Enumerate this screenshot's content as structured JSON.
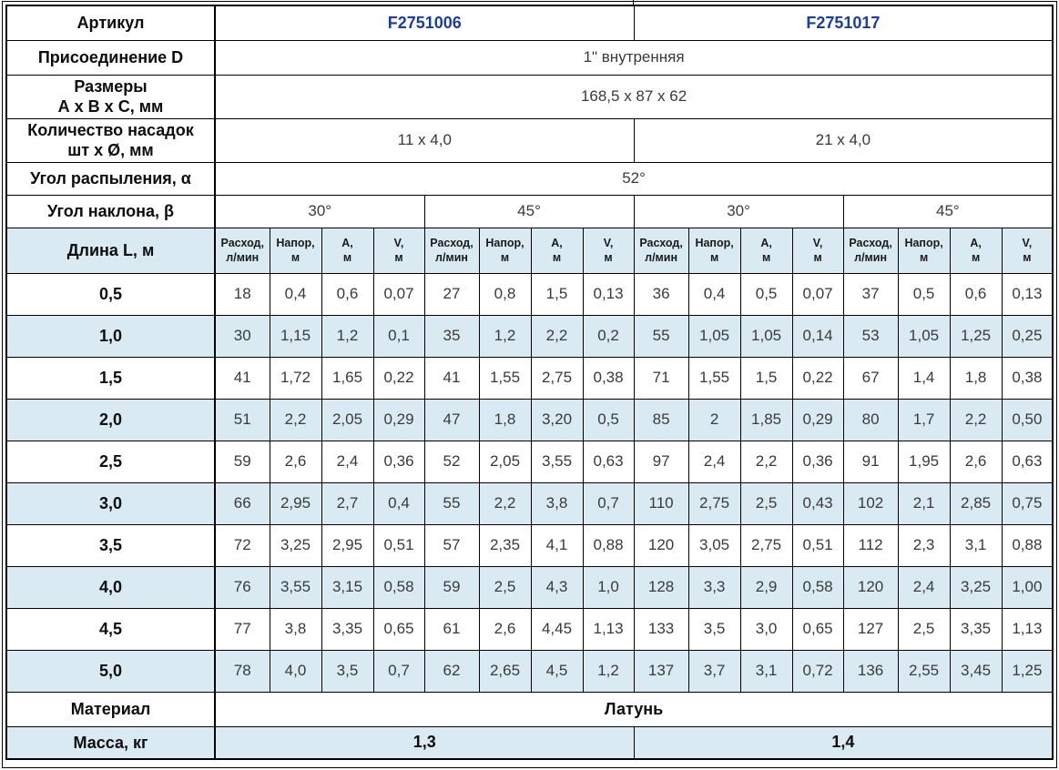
{
  "colors": {
    "accent_blue": "#d9eaf2",
    "article_blue": "#1b3da6",
    "border": "#000000"
  },
  "table": {
    "article": {
      "label": "Артикул",
      "left": "F2751006",
      "right": "F2751017"
    },
    "connection": {
      "label": "Присоединение D",
      "value": "1\" внутренняя"
    },
    "dimensions": {
      "label_line1": "Размеры",
      "label_line2": "А х В х С, мм",
      "value": "168,5 x 87 x 62"
    },
    "nozzles": {
      "label_line1": "Количество насадок",
      "label_line2": "шт х Ø, мм",
      "left": "11 x 4,0",
      "right": "21 x 4,0"
    },
    "spray_angle": {
      "label": "Угол распыления, α",
      "value": "52°"
    },
    "tilt_angle": {
      "label": "Угол наклона, β",
      "groups": [
        "30°",
        "45°",
        "30°",
        "45°"
      ]
    },
    "length_header": {
      "label": "Длина L, м",
      "group_count": 4,
      "sub_columns": [
        {
          "line1": "Расход,",
          "line2": "л/мин"
        },
        {
          "line1": "Напор,",
          "line2": "м"
        },
        {
          "line1": "А,",
          "line2": "м"
        },
        {
          "line1": "V,",
          "line2": "м"
        }
      ]
    },
    "rows": [
      {
        "length": "0,5",
        "values": [
          "18",
          "0,4",
          "0,6",
          "0,07",
          "27",
          "0,8",
          "1,5",
          "0,13",
          "36",
          "0,4",
          "0,5",
          "0,07",
          "37",
          "0,5",
          "0,6",
          "0,13"
        ]
      },
      {
        "length": "1,0",
        "values": [
          "30",
          "1,15",
          "1,2",
          "0,1",
          "35",
          "1,2",
          "2,2",
          "0,2",
          "55",
          "1,05",
          "1,05",
          "0,14",
          "53",
          "1,05",
          "1,25",
          "0,25"
        ]
      },
      {
        "length": "1,5",
        "values": [
          "41",
          "1,72",
          "1,65",
          "0,22",
          "41",
          "1,55",
          "2,75",
          "0,38",
          "71",
          "1,55",
          "1,5",
          "0,22",
          "67",
          "1,4",
          "1,8",
          "0,38"
        ]
      },
      {
        "length": "2,0",
        "values": [
          "51",
          "2,2",
          "2,05",
          "0,29",
          "47",
          "1,8",
          "3,20",
          "0,5",
          "85",
          "2",
          "1,85",
          "0,29",
          "80",
          "1,7",
          "2,2",
          "0,50"
        ]
      },
      {
        "length": "2,5",
        "values": [
          "59",
          "2,6",
          "2,4",
          "0,36",
          "52",
          "2,05",
          "3,55",
          "0,63",
          "97",
          "2,4",
          "2,2",
          "0,36",
          "91",
          "1,95",
          "2,6",
          "0,63"
        ]
      },
      {
        "length": "3,0",
        "values": [
          "66",
          "2,95",
          "2,7",
          "0,4",
          "55",
          "2,2",
          "3,8",
          "0,7",
          "110",
          "2,75",
          "2,5",
          "0,43",
          "102",
          "2,1",
          "2,85",
          "0,75"
        ]
      },
      {
        "length": "3,5",
        "values": [
          "72",
          "3,25",
          "2,95",
          "0,51",
          "57",
          "2,35",
          "4,1",
          "0,88",
          "120",
          "3,05",
          "2,75",
          "0,51",
          "112",
          "2,3",
          "3,1",
          "0,88"
        ]
      },
      {
        "length": "4,0",
        "values": [
          "76",
          "3,55",
          "3,15",
          "0,58",
          "59",
          "2,5",
          "4,3",
          "1,0",
          "128",
          "3,3",
          "2,9",
          "0,58",
          "120",
          "2,4",
          "3,25",
          "1,00"
        ]
      },
      {
        "length": "4,5",
        "values": [
          "77",
          "3,8",
          "3,35",
          "0,65",
          "61",
          "2,6",
          "4,45",
          "1,13",
          "133",
          "3,5",
          "3,0",
          "0,65",
          "127",
          "2,5",
          "3,35",
          "1,13"
        ]
      },
      {
        "length": "5,0",
        "values": [
          "78",
          "4,0",
          "3,5",
          "0,7",
          "62",
          "2,65",
          "4,5",
          "1,2",
          "137",
          "3,7",
          "3,1",
          "0,72",
          "136",
          "2,55",
          "3,45",
          "1,25"
        ]
      }
    ],
    "material": {
      "label": "Материал",
      "value": "Латунь"
    },
    "mass": {
      "label": "Масса, кг",
      "left": "1,3",
      "right": "1,4"
    }
  }
}
